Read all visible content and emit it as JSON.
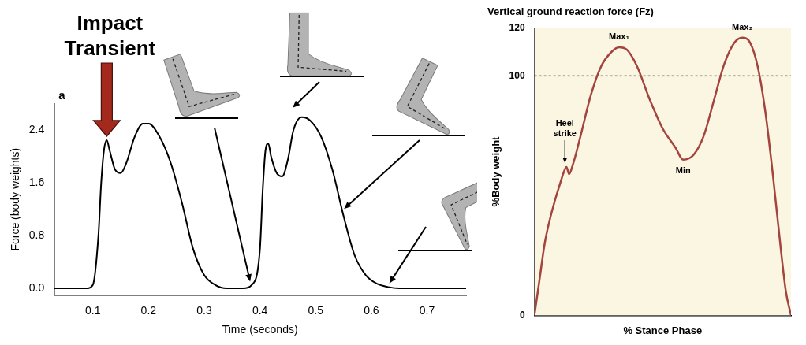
{
  "chart_data": [
    {
      "type": "line",
      "panel": "a",
      "annotations": [
        {
          "text": "Impact Transient"
        }
      ],
      "x_label": "Time (seconds)",
      "y_label": "Force (body weights)",
      "x": [
        0.03,
        0.09,
        0.1,
        0.11,
        0.115,
        0.12,
        0.125,
        0.13,
        0.14,
        0.15,
        0.16,
        0.175,
        0.19,
        0.2,
        0.22,
        0.24,
        0.26,
        0.28,
        0.3,
        0.32,
        0.34,
        0.37,
        0.385,
        0.4,
        0.405,
        0.41,
        0.415,
        0.42,
        0.43,
        0.44,
        0.45,
        0.46,
        0.475,
        0.49,
        0.51,
        0.53,
        0.55,
        0.57,
        0.59,
        0.61,
        0.63,
        0.65,
        0.77
      ],
      "values": [
        0,
        0,
        0.05,
        0.8,
        1.6,
        2.1,
        2.25,
        2.1,
        1.8,
        1.75,
        1.9,
        2.3,
        2.5,
        2.5,
        2.3,
        1.9,
        1.3,
        0.6,
        0.2,
        0.05,
        0,
        0,
        0.05,
        0.6,
        1.5,
        2.1,
        2.2,
        2.0,
        1.75,
        1.7,
        1.95,
        2.4,
        2.6,
        2.55,
        2.3,
        1.8,
        1.1,
        0.5,
        0.2,
        0.07,
        0.02,
        0,
        0
      ],
      "color": "#000000",
      "xlim": [
        0.03,
        0.77
      ],
      "xticks": [
        0.1,
        0.2,
        0.3,
        0.4,
        0.5,
        0.6,
        0.7
      ],
      "ylim": [
        -0.1,
        2.8
      ],
      "yticks": [
        {
          "value": 0,
          "label": "0.0"
        },
        0.8,
        1.6,
        2.4
      ],
      "grid": false
    },
    {
      "type": "line",
      "title": "Vertical ground reaction force (Fz)",
      "x_label": "% Stance Phase",
      "y_label": "%Body weight",
      "x": [
        0,
        2,
        4,
        6,
        8,
        10,
        11.5,
        12.5,
        13.5,
        15,
        18,
        22,
        26,
        30,
        33,
        36,
        40,
        45,
        50,
        55,
        58,
        62,
        66,
        70,
        74,
        78,
        81,
        84,
        87,
        90,
        93,
        96,
        98,
        100
      ],
      "values": [
        0,
        15,
        30,
        40,
        48,
        55,
        60,
        62,
        59,
        63,
        75,
        92,
        104,
        110,
        112,
        111,
        104,
        90,
        78,
        70,
        65,
        67,
        75,
        90,
        105,
        114,
        116,
        114,
        104,
        85,
        58,
        28,
        10,
        0
      ],
      "color": "#a4443e",
      "xlim": [
        0,
        100
      ],
      "ylim": [
        0,
        120
      ],
      "yticks": [
        0,
        100,
        120
      ],
      "tick_labels": "y",
      "grid": false,
      "reference_line": 100,
      "annotations": [
        {
          "text": "Heel strike",
          "x": 12.5,
          "y": 62
        },
        {
          "text": "Max₁",
          "x": 33,
          "y": 112
        },
        {
          "text": "Min",
          "x": 58,
          "y": 65
        },
        {
          "text": "Max₂",
          "x": 81,
          "y": 116
        }
      ]
    }
  ]
}
